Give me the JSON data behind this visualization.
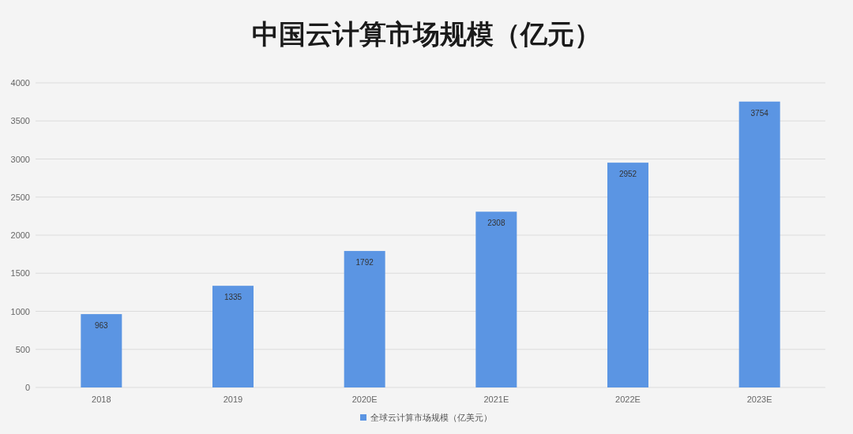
{
  "chart_data": {
    "type": "bar",
    "title": "中国云计算市场规模（亿元）",
    "categories": [
      "2018",
      "2019",
      "2020E",
      "2021E",
      "2022E",
      "2023E"
    ],
    "series": [
      {
        "name": "全球云计算市场规模（亿美元）",
        "color": "#5b95e3",
        "values": [
          963,
          1335,
          1792,
          2308,
          2952,
          3754
        ]
      }
    ],
    "ylim": [
      0,
      4000
    ],
    "yticks": [
      0,
      500,
      1000,
      1500,
      2000,
      2500,
      3000,
      3500,
      4000
    ],
    "grid": "y",
    "legend": "bottom",
    "data_labels": true
  }
}
